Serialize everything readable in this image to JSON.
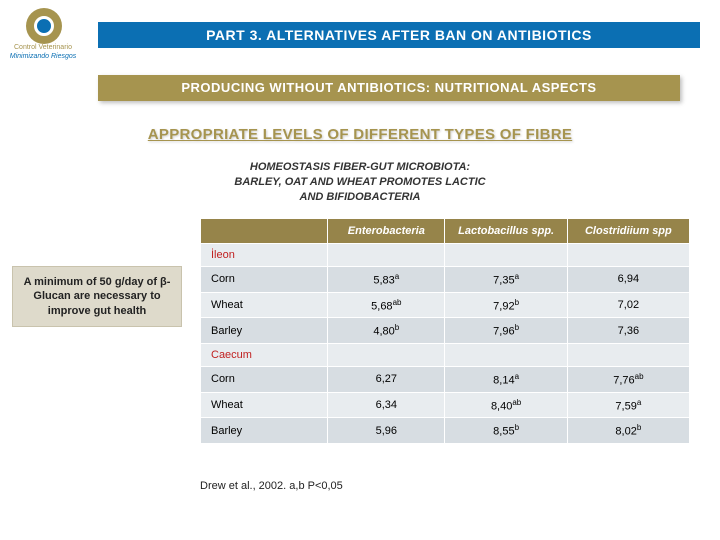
{
  "logo": {
    "text1": "Control Veterinario",
    "text2": "Minimizando Riesgos"
  },
  "titles": {
    "t1": "PART 3. ALTERNATIVES AFTER BAN ON ANTIBIOTICS",
    "t2": "PRODUCING WITHOUT ANTIBIOTICS: NUTRITIONAL ASPECTS",
    "t3": "APPROPRIATE LEVELS OF DIFFERENT TYPES OF FIBRE"
  },
  "sub": {
    "l1": "HOMEOSTASIS FIBER-GUT MICROBIOTA:",
    "l2": "BARLEY, OAT AND WHEAT PROMOTES LACTIC",
    "l3": "AND BIFIDOBACTERIA"
  },
  "callout": "A minimum of 50 g/day of β-Glucan are necessary to improve gut health",
  "table": {
    "head": {
      "c1": "",
      "c2": "Enterobacteria",
      "c3": "Lactobacillus spp.",
      "c4": "Clostridiium spp"
    },
    "section1": "İleon",
    "rows1": [
      {
        "name": "Corn",
        "c2": "5,83",
        "c2s": "a",
        "c3": "7,35",
        "c3s": "a",
        "c4": "6,94",
        "c4s": ""
      },
      {
        "name": "Wheat",
        "c2": "5,68",
        "c2s": "ab",
        "c3": "7,92",
        "c3s": "b",
        "c4": "7,02",
        "c4s": ""
      },
      {
        "name": "Barley",
        "c2": "4,80",
        "c2s": "b",
        "c3": "7,96",
        "c3s": "b",
        "c4": "7,36",
        "c4s": ""
      }
    ],
    "section2": "Caecum",
    "rows2": [
      {
        "name": "Corn",
        "c2": "6,27",
        "c2s": "",
        "c3": "8,14",
        "c3s": "a",
        "c4": "7,76",
        "c4s": "ab"
      },
      {
        "name": "Wheat",
        "c2": "6,34",
        "c2s": "",
        "c3": "8,40",
        "c3s": "ab",
        "c4": "7,59",
        "c4s": "a"
      },
      {
        "name": "Barley",
        "c2": "5,96",
        "c2s": "",
        "c3": "8,55",
        "c3s": "b",
        "c4": "8,02",
        "c4s": "b"
      }
    ]
  },
  "citation": "Drew et al., 2002. a,b P<0,05",
  "style": {
    "title1_bg": "#0b6fb3",
    "title2_bg": "#a6944f",
    "th_bg": "#96844a",
    "row_a_bg": "#e8ecef",
    "row_b_bg": "#d7dde2",
    "callout_bg": "#dedacb",
    "section_color": "#c02020"
  }
}
